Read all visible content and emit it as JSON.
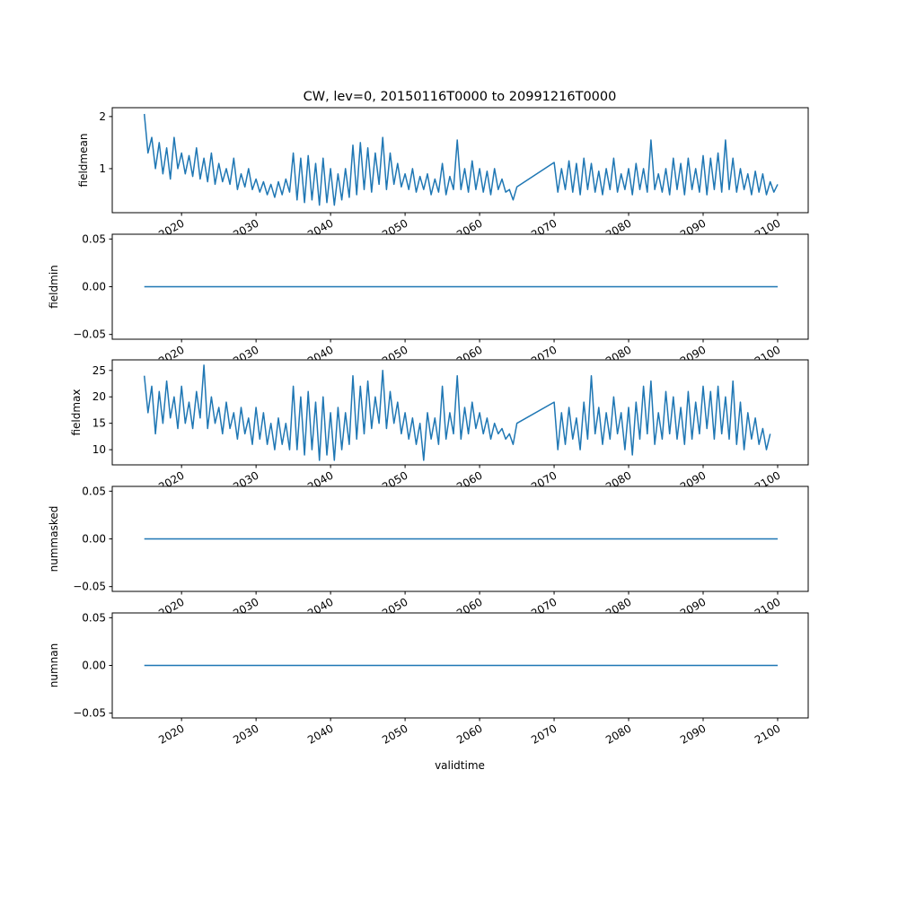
{
  "chart_data": {
    "type": "line",
    "title": "CW, lev=0, 20150116T0000 to 20991216T0000",
    "xlabel": "validtime",
    "xlim": [
      2010.7,
      2104.1
    ],
    "xticks": [
      2020,
      2030,
      2040,
      2050,
      2060,
      2070,
      2080,
      2090,
      2100
    ],
    "xtick_labels": [
      "2020",
      "2030",
      "2040",
      "2050",
      "2060",
      "2070",
      "2080",
      "2090",
      "2100"
    ],
    "color": "#1f77b4",
    "panels": [
      {
        "ylabel": "fieldmean",
        "ylim": [
          0.155,
          2.17
        ],
        "yticks": [
          1,
          2
        ],
        "ytick_labels": [
          "1",
          "2"
        ],
        "x0": 2015,
        "step": 0.5,
        "values": [
          2.05,
          1.3,
          1.6,
          1.0,
          1.5,
          0.9,
          1.4,
          0.8,
          1.6,
          1.0,
          1.3,
          0.9,
          1.25,
          0.85,
          1.4,
          0.8,
          1.2,
          0.75,
          1.3,
          0.7,
          1.1,
          0.75,
          1.0,
          0.7,
          1.2,
          0.6,
          0.9,
          0.65,
          1.0,
          0.6,
          0.8,
          0.55,
          0.75,
          0.5,
          0.7,
          0.45,
          0.75,
          0.5,
          0.8,
          0.55,
          1.3,
          0.4,
          1.2,
          0.35,
          1.25,
          0.4,
          1.1,
          0.3,
          1.2,
          0.35,
          1.0,
          0.3,
          0.9,
          0.4,
          1.0,
          0.45,
          1.45,
          0.5,
          1.5,
          0.6,
          1.4,
          0.55,
          1.3,
          0.7,
          1.6,
          0.6,
          1.3,
          0.7,
          1.1,
          0.65,
          0.9,
          0.6,
          1.0,
          0.55,
          0.85,
          0.6,
          0.9,
          0.5,
          0.8,
          0.55,
          1.1,
          0.5,
          0.85,
          0.6,
          1.55,
          0.6,
          1.0,
          0.55,
          1.15,
          0.6,
          1.0,
          0.55,
          0.95,
          0.5,
          1.0,
          0.6,
          0.8,
          0.55,
          0.6,
          0.4,
          0.65,
          null,
          null,
          null,
          null,
          null,
          null,
          null,
          null,
          null,
          1.12,
          0.55,
          1.0,
          0.6,
          1.15,
          0.55,
          1.1,
          0.5,
          1.2,
          0.6,
          1.1,
          0.55,
          0.95,
          0.5,
          1.0,
          0.6,
          1.2,
          0.55,
          0.9,
          0.6,
          1.0,
          0.5,
          1.1,
          0.6,
          1.0,
          0.55,
          1.55,
          0.6,
          0.9,
          0.55,
          1.0,
          0.5,
          1.2,
          0.6,
          1.1,
          0.5,
          1.2,
          0.6,
          1.0,
          0.55,
          1.25,
          0.5,
          1.2,
          0.6,
          1.3,
          0.55,
          1.55,
          0.6,
          1.2,
          0.55,
          1.0,
          0.6,
          0.9,
          0.5,
          0.95,
          0.55,
          0.9,
          0.5,
          0.75,
          0.55,
          0.7
        ]
      },
      {
        "ylabel": "fieldmin",
        "ylim": [
          -0.055,
          0.055
        ],
        "yticks": [
          -0.05,
          0.0,
          0.05
        ],
        "ytick_labels": [
          "−0.05",
          "0.00",
          "0.05"
        ],
        "x0": 2015,
        "step": 85,
        "values": [
          0,
          0
        ]
      },
      {
        "ylabel": "fieldmax",
        "ylim": [
          7.13,
          27.0
        ],
        "yticks": [
          10,
          15,
          20,
          25
        ],
        "ytick_labels": [
          "10",
          "15",
          "20",
          "25"
        ],
        "x0": 2015,
        "step": 0.5,
        "values": [
          24,
          17,
          22,
          13,
          21,
          15,
          23,
          16,
          20,
          14,
          22,
          15,
          19,
          14,
          21,
          16,
          26,
          14,
          20,
          15,
          18,
          13,
          19,
          14,
          17,
          12,
          18,
          13,
          16,
          11,
          18,
          12,
          17,
          11,
          15,
          10,
          16,
          11,
          15,
          10,
          22,
          10,
          20,
          9,
          21,
          10,
          19,
          8,
          20,
          9,
          17,
          8,
          18,
          10,
          17,
          11,
          24,
          12,
          22,
          13,
          23,
          14,
          20,
          15,
          25,
          14,
          21,
          15,
          19,
          13,
          17,
          12,
          16,
          11,
          15,
          8,
          17,
          12,
          16,
          11,
          22,
          12,
          17,
          13,
          24,
          12,
          18,
          13,
          19,
          14,
          17,
          13,
          16,
          12,
          15,
          13,
          14,
          12,
          13,
          11,
          15,
          null,
          null,
          null,
          null,
          null,
          null,
          null,
          null,
          null,
          19,
          10,
          17,
          11,
          18,
          12,
          16,
          10,
          19,
          12,
          24,
          13,
          18,
          11,
          17,
          12,
          20,
          13,
          17,
          10,
          18,
          9,
          19,
          12,
          22,
          13,
          23,
          11,
          17,
          12,
          21,
          13,
          20,
          12,
          18,
          11,
          21,
          12,
          19,
          13,
          22,
          14,
          21,
          12,
          22,
          13,
          20,
          12,
          23,
          11,
          19,
          10,
          17,
          12,
          16,
          11,
          14,
          10,
          13
        ]
      },
      {
        "ylabel": "nummasked",
        "ylim": [
          -0.055,
          0.055
        ],
        "yticks": [
          -0.05,
          0.0,
          0.05
        ],
        "ytick_labels": [
          "−0.05",
          "0.00",
          "0.05"
        ],
        "x0": 2015,
        "step": 85,
        "values": [
          0,
          0
        ]
      },
      {
        "ylabel": "numnan",
        "ylim": [
          -0.055,
          0.055
        ],
        "yticks": [
          -0.05,
          0.0,
          0.05
        ],
        "ytick_labels": [
          "−0.05",
          "0.00",
          "0.05"
        ],
        "x0": 2015,
        "step": 85,
        "values": [
          0,
          0
        ]
      }
    ]
  }
}
